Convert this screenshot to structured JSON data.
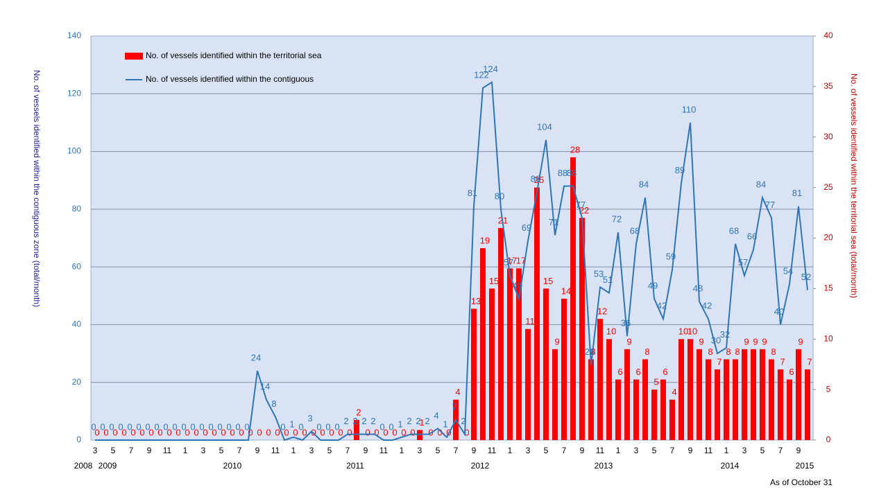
{
  "chart_data": {
    "type": "bar-line",
    "categories": [
      "3",
      null,
      "5",
      null,
      "7",
      null,
      "9",
      null,
      "11",
      null,
      "1",
      null,
      "3",
      null,
      "5",
      null,
      "7",
      null,
      "9",
      null,
      "11",
      null,
      "1",
      null,
      "3",
      null,
      "5",
      null,
      "7",
      null,
      "9",
      null,
      "11",
      null,
      "1",
      null,
      "3",
      null,
      "5",
      null,
      "7",
      null,
      "9",
      null,
      "11",
      null,
      "1",
      null,
      "3",
      null,
      "5",
      null,
      "7",
      null,
      "9",
      null,
      "11",
      null,
      "1",
      null,
      "3",
      null,
      "5",
      null,
      "7",
      null,
      "9",
      null,
      "11",
      null,
      "1",
      null,
      "3",
      null,
      "5",
      null,
      "7",
      null,
      "9",
      null
    ],
    "years": [
      "2008",
      "2009",
      "2010",
      "2011",
      "2012",
      "2013",
      "2014",
      "2015"
    ],
    "note": "As of October 31",
    "series": [
      {
        "name": "No. of vessels identified within the territorial sea",
        "color": "#ff0000",
        "axis": "y2",
        "kind": "bar",
        "values": [
          0,
          0,
          0,
          0,
          0,
          0,
          0,
          0,
          0,
          0,
          0,
          0,
          0,
          0,
          0,
          0,
          0,
          0,
          0,
          0,
          0,
          0,
          0,
          0,
          0,
          0,
          0,
          0,
          0,
          2,
          0,
          0,
          0,
          0,
          0,
          0,
          1,
          0,
          0,
          0,
          4,
          0,
          13,
          19,
          15,
          21,
          17,
          17,
          11,
          25,
          15,
          9,
          14,
          28,
          22,
          8,
          12,
          10,
          6,
          9,
          6,
          8,
          5,
          6,
          4,
          10,
          10,
          9,
          8,
          7,
          8,
          8,
          9,
          9,
          9,
          8,
          7,
          6,
          9,
          7
        ]
      },
      {
        "name": "No. of vessels identified within the contiguous",
        "color": "#2e75b6",
        "axis": "y",
        "kind": "line",
        "values": [
          0,
          0,
          0,
          0,
          0,
          0,
          0,
          0,
          0,
          0,
          0,
          0,
          0,
          0,
          0,
          0,
          0,
          0,
          24,
          14,
          8,
          0,
          1,
          0,
          3,
          0,
          0,
          0,
          2,
          2,
          2,
          2,
          0,
          0,
          1,
          2,
          2,
          2,
          4,
          1,
          7,
          2,
          81,
          122,
          124,
          80,
          57,
          49,
          69,
          86,
          104,
          71,
          88,
          88,
          77,
          26,
          53,
          51,
          72,
          36,
          68,
          84,
          49,
          42,
          59,
          89,
          110,
          48,
          42,
          30,
          32,
          68,
          57,
          66,
          84,
          77,
          40,
          54,
          81,
          52
        ]
      }
    ],
    "ylabel": "No. of vessels identified within the contiguous zone (total/month)",
    "y2label": "No. of vessels identified within the territorial sea (total/month)",
    "ylim": [
      0,
      140
    ],
    "yticks": [
      0,
      20,
      40,
      60,
      80,
      100,
      120,
      140
    ],
    "y2lim": [
      0,
      40
    ],
    "y2ticks": [
      0,
      5,
      10,
      15,
      20,
      25,
      30,
      35,
      40
    ],
    "grid": true
  }
}
